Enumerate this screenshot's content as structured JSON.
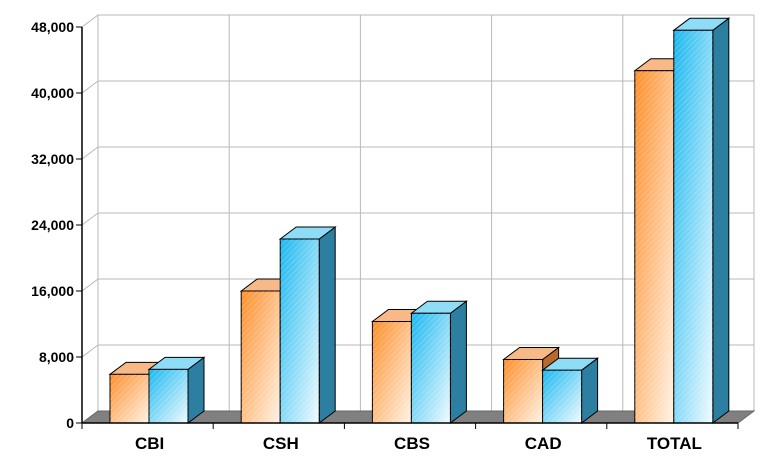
{
  "chart_data": {
    "type": "bar",
    "title": "",
    "xlabel": "",
    "ylabel": "",
    "categories": [
      "CBI",
      "CSH",
      "CBS",
      "CAD",
      "TOTAL"
    ],
    "series": [
      {
        "values": [
          5900,
          16000,
          12300,
          7700,
          42700
        ],
        "color": "#ff9933"
      },
      {
        "values": [
          6500,
          22300,
          13300,
          6400,
          47600
        ],
        "color": "#33ccff"
      }
    ],
    "ylim": [
      0,
      48000
    ],
    "yticks": [
      "0",
      "8,000",
      "16,000",
      "24,000",
      "32,000",
      "40,000",
      "48,000"
    ],
    "grid": true,
    "legend": "none"
  }
}
